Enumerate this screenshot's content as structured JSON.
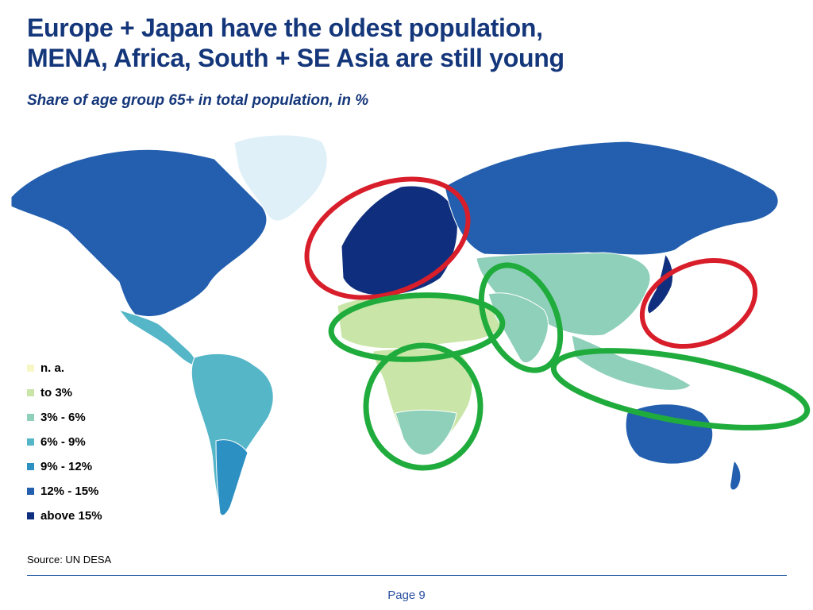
{
  "title": {
    "line1": "Europe + Japan have the oldest population,",
    "line2": "MENA, Africa, South + SE Asia are still young"
  },
  "subtitle": "Share of age group 65+ in total population, in %",
  "legend": [
    {
      "label": "n. a.",
      "color": "#f7f7c6"
    },
    {
      "label": "to 3%",
      "color": "#c9e6a8"
    },
    {
      "label": "3% - 6%",
      "color": "#8fd0ba"
    },
    {
      "label": "6% - 9%",
      "color": "#55b6c8"
    },
    {
      "label": "9% - 12%",
      "color": "#2c90c2"
    },
    {
      "label": "12% - 15%",
      "color": "#235fae"
    },
    {
      "label": "above 15%",
      "color": "#0f2f7e"
    }
  ],
  "highlights": {
    "old_color": "#d81e2a",
    "young_color": "#1fac3c",
    "old_regions": [
      "Europe",
      "Japan"
    ],
    "young_regions": [
      "MENA",
      "Africa",
      "South Asia",
      "Southeast Asia"
    ]
  },
  "source": "Source: UN DESA",
  "page_label": "Page 9"
}
